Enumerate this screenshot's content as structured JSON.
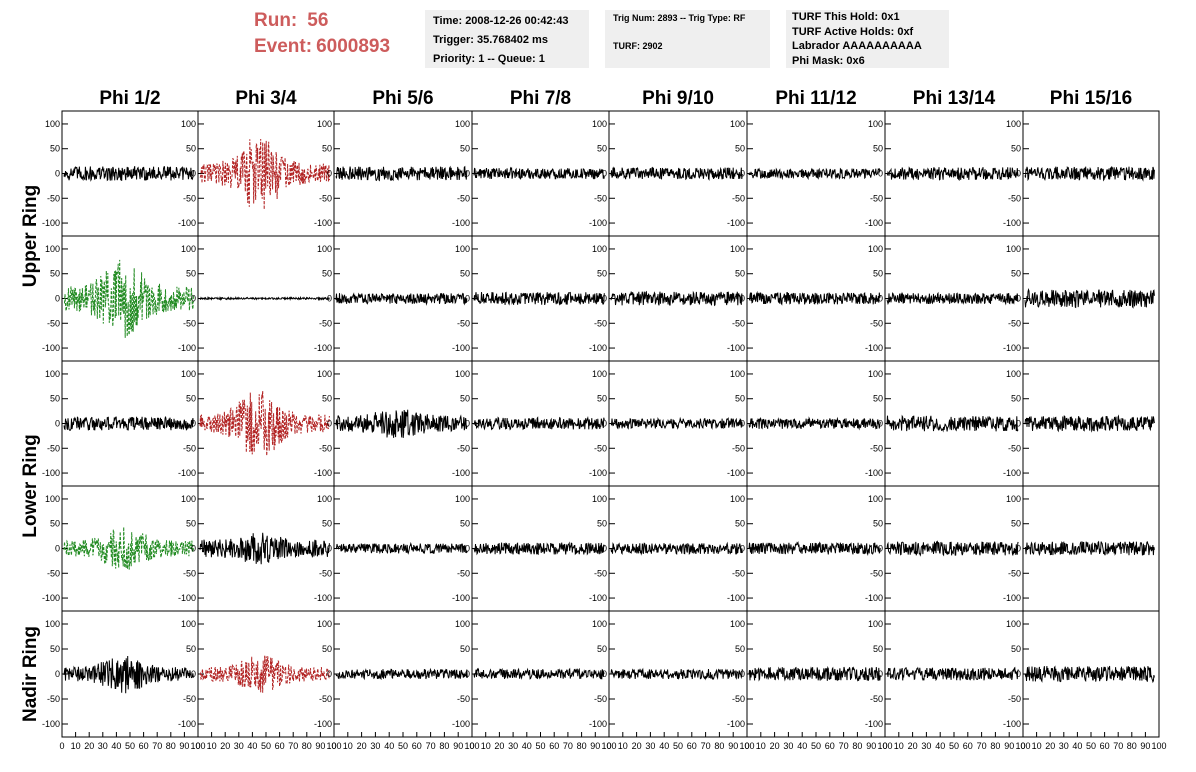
{
  "header": {
    "run_label": "Run:",
    "run_value": "56",
    "event_label": "Event:",
    "event_value": "6000893",
    "colors": {
      "accent": "#cd5c5c"
    }
  },
  "info": {
    "time": "Time: 2008-12-26 00:42:43",
    "trigger": "Trigger: 35.768402 ms",
    "priority": "Priority: 1 -- Queue: 1",
    "trig_num": "Trig Num: 2893 -- Trig Type: RF",
    "turf": "TURF: 2902",
    "turf_this_hold": "TURF This Hold: 0x1",
    "turf_active_holds": "TURF Active Holds: 0xf",
    "labrador": "Labrador AAAAAAAAAA",
    "phi_mask": "Phi Mask: 0x6"
  },
  "chart_data": {
    "type": "line",
    "columns": [
      "Phi 1/2",
      "Phi 3/4",
      "Phi 5/6",
      "Phi 7/8",
      "Phi 9/10",
      "Phi 11/12",
      "Phi 13/14",
      "Phi 15/16"
    ],
    "ring_labels": [
      "Upper Ring",
      "Lower Ring",
      "Nadir Ring"
    ],
    "rows_per_ring": [
      2,
      2,
      1
    ],
    "xlim": [
      0,
      100
    ],
    "x_ticks": [
      0,
      10,
      20,
      30,
      40,
      50,
      60,
      70,
      80,
      90,
      100
    ],
    "ylim": [
      -110,
      110
    ],
    "y_ticks": [
      -100,
      -50,
      0,
      50,
      100
    ],
    "colors": {
      "normal": "#000000",
      "triggered_red": "#b22222",
      "triggered_green": "#228b22"
    },
    "panels": [
      [
        {
          "style": "normal",
          "amp": 15,
          "burst": 0
        },
        {
          "style": "red",
          "amp": 20,
          "burst": 60
        },
        {
          "style": "normal",
          "amp": 14,
          "burst": 0
        },
        {
          "style": "normal",
          "amp": 11,
          "burst": 0
        },
        {
          "style": "normal",
          "amp": 12,
          "burst": 0
        },
        {
          "style": "normal",
          "amp": 10,
          "burst": 0
        },
        {
          "style": "normal",
          "amp": 13,
          "burst": 0
        },
        {
          "style": "normal",
          "amp": 14,
          "burst": 0
        }
      ],
      [
        {
          "style": "green",
          "amp": 25,
          "burst": 55
        },
        {
          "style": "normal",
          "amp": 2,
          "burst": 0
        },
        {
          "style": "normal",
          "amp": 11,
          "burst": 0
        },
        {
          "style": "normal",
          "amp": 13,
          "burst": 0
        },
        {
          "style": "normal",
          "amp": 14,
          "burst": 0
        },
        {
          "style": "normal",
          "amp": 12,
          "burst": 0
        },
        {
          "style": "normal",
          "amp": 11,
          "burst": 0
        },
        {
          "style": "normal",
          "amp": 18,
          "burst": 0
        }
      ],
      [
        {
          "style": "normal",
          "amp": 14,
          "burst": 0
        },
        {
          "style": "red",
          "amp": 18,
          "burst": 55
        },
        {
          "style": "normal",
          "amp": 16,
          "burst": 15
        },
        {
          "style": "normal",
          "amp": 12,
          "burst": 0
        },
        {
          "style": "normal",
          "amp": 10,
          "burst": 0
        },
        {
          "style": "normal",
          "amp": 11,
          "burst": 0
        },
        {
          "style": "normal",
          "amp": 16,
          "burst": 0
        },
        {
          "style": "normal",
          "amp": 15,
          "burst": 0
        }
      ],
      [
        {
          "style": "green",
          "amp": 16,
          "burst": 30
        },
        {
          "style": "normal",
          "amp": 18,
          "burst": 15
        },
        {
          "style": "normal",
          "amp": 10,
          "burst": 0
        },
        {
          "style": "normal",
          "amp": 12,
          "burst": 0
        },
        {
          "style": "normal",
          "amp": 11,
          "burst": 0
        },
        {
          "style": "normal",
          "amp": 12,
          "burst": 0
        },
        {
          "style": "normal",
          "amp": 14,
          "burst": 0
        },
        {
          "style": "normal",
          "amp": 14,
          "burst": 0
        }
      ],
      [
        {
          "style": "normal",
          "amp": 14,
          "burst": 25
        },
        {
          "style": "red",
          "amp": 14,
          "burst": 25
        },
        {
          "style": "normal",
          "amp": 10,
          "burst": 0
        },
        {
          "style": "normal",
          "amp": 10,
          "burst": 0
        },
        {
          "style": "normal",
          "amp": 10,
          "burst": 0
        },
        {
          "style": "normal",
          "amp": 14,
          "burst": 0
        },
        {
          "style": "normal",
          "amp": 13,
          "burst": 0
        },
        {
          "style": "normal",
          "amp": 16,
          "burst": 0
        }
      ]
    ]
  }
}
